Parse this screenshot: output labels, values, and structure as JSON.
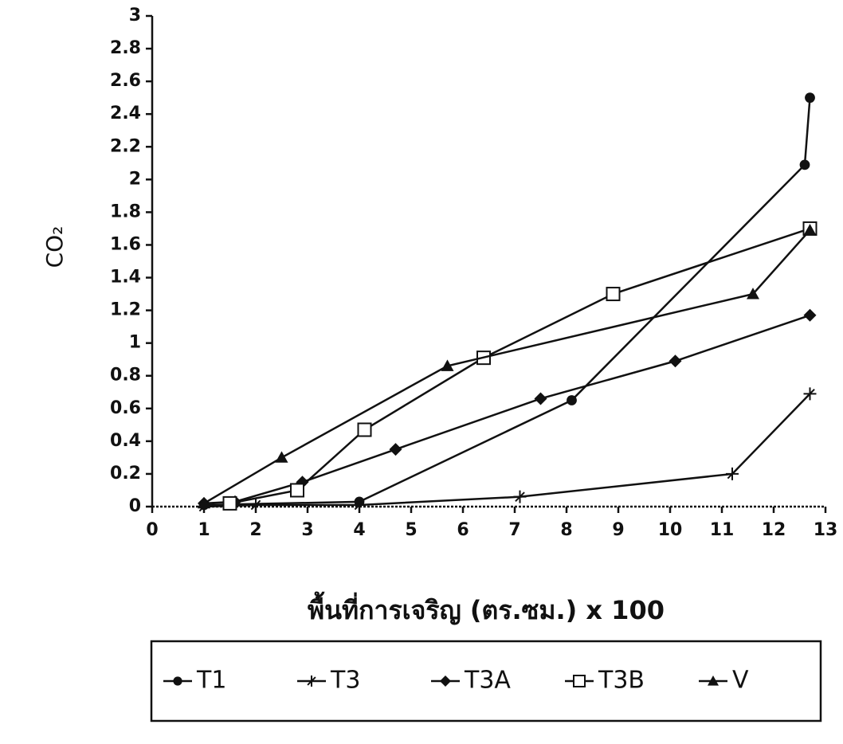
{
  "chart_data": {
    "type": "line",
    "y_label": "CO₂",
    "x_label": "พื้นที่การเจริญ (ตร.ซม.) x 100",
    "xlim": [
      0,
      13
    ],
    "xticks": [
      0,
      1,
      2,
      3,
      4,
      5,
      6,
      7,
      8,
      9,
      10,
      11,
      12,
      13
    ],
    "ylim": [
      0,
      3
    ],
    "yticks": [
      0,
      0.2,
      0.4,
      0.6,
      0.8,
      1,
      1.2,
      1.4,
      1.6,
      1.8,
      2,
      2.2,
      2.4,
      2.6,
      2.8,
      3
    ],
    "grid": false,
    "legend": "bottom",
    "series": [
      {
        "name": "T1",
        "color": "#111111",
        "marker": "circle",
        "x": [
          1,
          4,
          8.1,
          12.6,
          12.7
        ],
        "values": [
          0.01,
          0.03,
          0.65,
          2.09,
          2.5
        ]
      },
      {
        "name": "T3",
        "color": "#111111",
        "marker": "star",
        "x": [
          1,
          2,
          4,
          7.1,
          11.2,
          12.7
        ],
        "values": [
          0,
          0.01,
          0.01,
          0.06,
          0.2,
          0.69
        ]
      },
      {
        "name": "T3A",
        "color": "#111111",
        "marker": "diamond",
        "x": [
          1,
          1.6,
          2.9,
          4.7,
          7.5,
          10.1,
          12.7
        ],
        "values": [
          0.02,
          0.03,
          0.15,
          0.35,
          0.66,
          0.89,
          1.17
        ]
      },
      {
        "name": "T3B",
        "color": "#111111",
        "marker": "square",
        "x": [
          1.5,
          2.8,
          4.1,
          6.4,
          8.9,
          12.7
        ],
        "values": [
          0.02,
          0.1,
          0.47,
          0.91,
          1.3,
          1.7
        ]
      },
      {
        "name": "V",
        "color": "#111111",
        "marker": "triangle",
        "x": [
          1,
          2.5,
          5.7,
          11.6,
          12.7
        ],
        "values": [
          0.02,
          0.3,
          0.86,
          1.3,
          1.69
        ]
      }
    ]
  }
}
